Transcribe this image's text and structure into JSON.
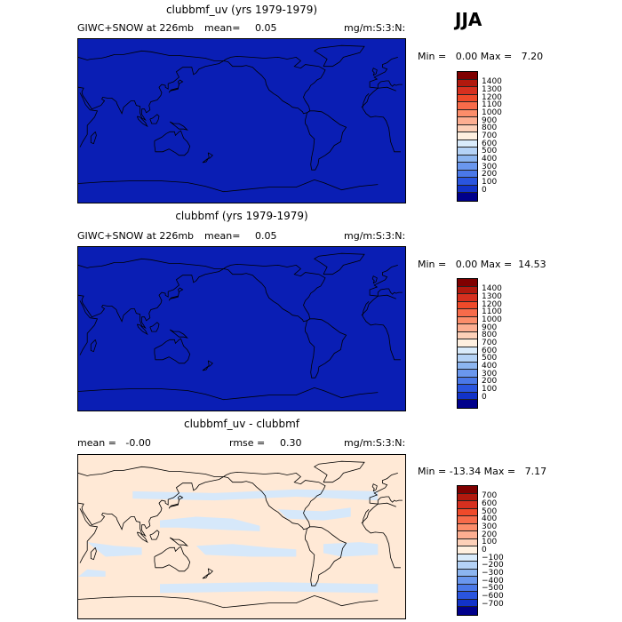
{
  "season": "JJA",
  "panels": [
    {
      "title": "clubbmf_uv (yrs 1979-1979)",
      "left": "GIWC+SNOW at 226mb",
      "mean_label": "mean=",
      "mean_value": "0.05",
      "right": "mg/m:S:3:N:",
      "minmax": "Min =   0.00 Max =   7.20"
    },
    {
      "title": "clubbmf (yrs 1979-1979)",
      "left": "GIWC+SNOW at 226mb",
      "mean_label": "mean=",
      "mean_value": "0.05",
      "right": "mg/m:S:3:N:",
      "minmax": "Min =   0.00 Max =  14.53"
    },
    {
      "title": "clubbmf_uv - clubbmf",
      "left": "mean =   -0.00",
      "rmse_label": "rmse =",
      "rmse_value": "0.30",
      "right": "mg/m:S:3:N:",
      "minmax": "Min = -13.34 Max =   7.17"
    }
  ],
  "colorbar_abs": {
    "labels": [
      "1400",
      "1300",
      "1200",
      "1100",
      "1000",
      "900",
      "800",
      "700",
      "600",
      "500",
      "400",
      "300",
      "200",
      "100",
      "0"
    ],
    "colors": [
      "#7f0000",
      "#b2190e",
      "#d7301f",
      "#ef4a2a",
      "#f76b4a",
      "#fc8d6a",
      "#fdae91",
      "#fdd0b8",
      "#fff0e0",
      "#d9ebfb",
      "#b4d2f6",
      "#8cb5f0",
      "#6a97ee",
      "#4a78e8",
      "#2a55df",
      "#1233c9",
      "#00008b"
    ]
  },
  "colorbar_diff": {
    "labels": [
      "700",
      "600",
      "500",
      "400",
      "300",
      "200",
      "100",
      "0",
      "−100",
      "−200",
      "−300",
      "−400",
      "−500",
      "−600",
      "−700"
    ],
    "colors": [
      "#7f0000",
      "#b2190e",
      "#d7301f",
      "#ef4a2a",
      "#f76b4a",
      "#fc8d6a",
      "#fdae91",
      "#fdd0b8",
      "#fff0e0",
      "#d9ebfb",
      "#b4d2f6",
      "#8cb5f0",
      "#6a97ee",
      "#4a78e8",
      "#2a55df",
      "#1233c9",
      "#00008b"
    ]
  },
  "colors": {
    "map_fill": "#0a1eb4",
    "diff_fill": "#ffe9d6",
    "diff_patch": "#d6e8fa",
    "coast": "#000000"
  }
}
